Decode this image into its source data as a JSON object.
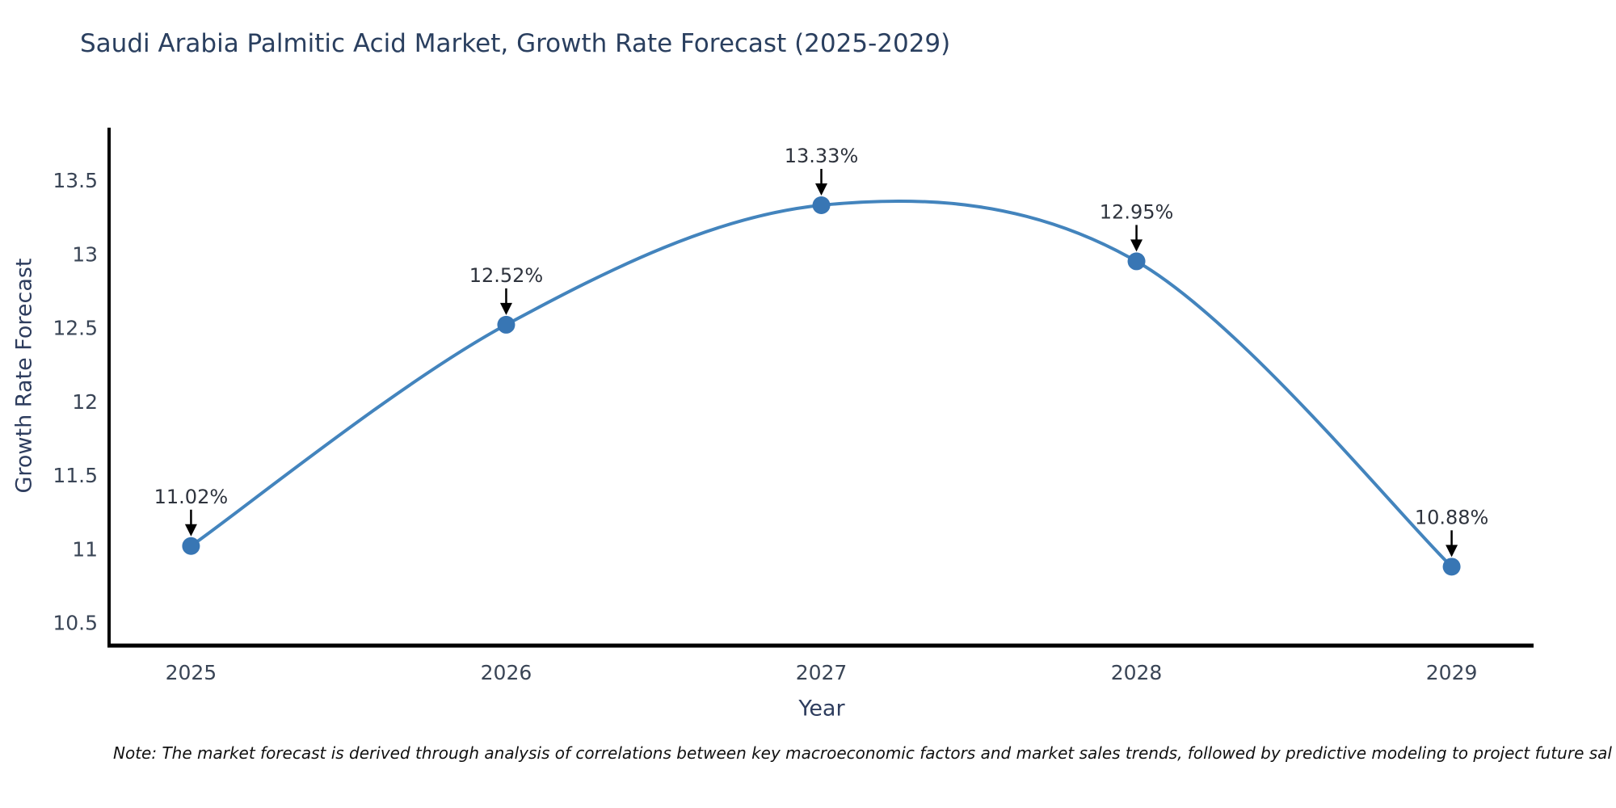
{
  "chart_data": {
    "type": "line",
    "title": "Saudi Arabia Palmitic Acid Market, Growth Rate Forecast (2025-2029)",
    "xlabel": "Year",
    "ylabel": "Growth Rate Forecast",
    "x": [
      2025,
      2026,
      2027,
      2028,
      2029
    ],
    "values": [
      11.02,
      12.52,
      13.33,
      12.95,
      10.88
    ],
    "point_labels": [
      "11.02%",
      "12.52%",
      "13.33%",
      "12.95%",
      "10.88%"
    ],
    "xtick_labels": [
      "2025",
      "2026",
      "2027",
      "2028",
      "2029"
    ],
    "yticks": [
      10.5,
      11,
      11.5,
      12,
      12.5,
      13,
      13.5
    ],
    "ytick_labels": [
      "10.5",
      "11",
      "11.5",
      "12",
      "12.5",
      "13",
      "13.5"
    ],
    "xlim": [
      2024.74,
      2029.26
    ],
    "ylim": [
      10.345,
      13.845
    ],
    "grid": false,
    "legend": null,
    "line_color": "#4384bd",
    "marker_color": "#3876b4",
    "annotation_arrow_color": "#000000",
    "annotation_text_color": "#2e333d",
    "tick_label_color": "#3a4556",
    "axis_spine_color": "#000000",
    "note": "Note: The market forecast is derived through analysis of correlations between key macroeconomic factors and market sales trends, followed by predictive modeling to project future sal"
  }
}
